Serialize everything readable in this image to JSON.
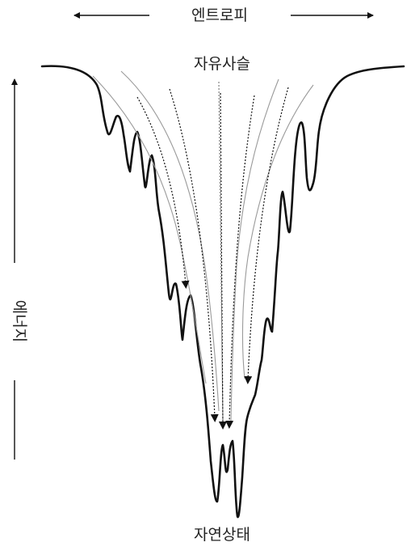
{
  "labels": {
    "entropy": "엔트로피",
    "free_chain": "자유사슬",
    "energy": "에너지",
    "native_state": "자연상태"
  },
  "colors": {
    "ink": "#111111",
    "guide": "#9a9a9a",
    "text": "#222222"
  }
}
